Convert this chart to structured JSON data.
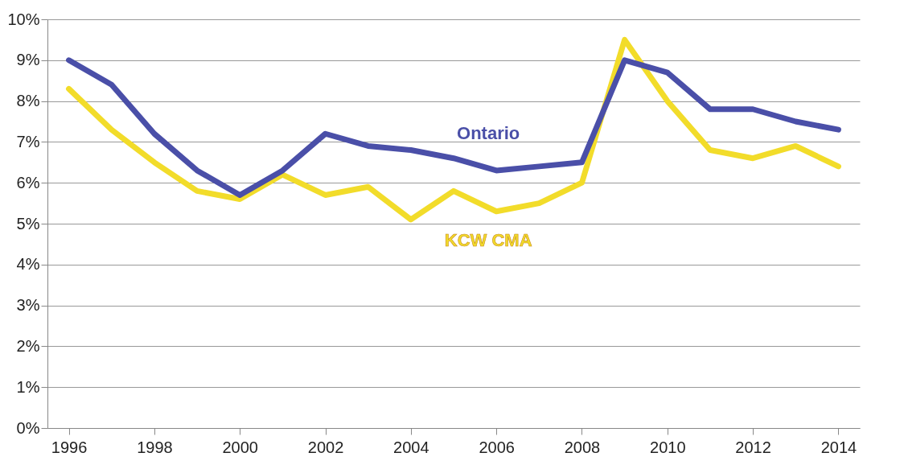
{
  "chart_data": {
    "type": "line",
    "x": [
      1996,
      1997,
      1998,
      1999,
      2000,
      2001,
      2002,
      2003,
      2004,
      2005,
      2006,
      2007,
      2008,
      2009,
      2010,
      2011,
      2012,
      2013,
      2014
    ],
    "xlim": [
      1995.5,
      2014.5
    ],
    "xticks": [
      1996,
      1998,
      2000,
      2002,
      2004,
      2006,
      2008,
      2010,
      2012,
      2014
    ],
    "ylim": [
      0,
      10
    ],
    "yticks": [
      {
        "value": 0,
        "label": "0%"
      },
      {
        "value": 1,
        "label": "1%"
      },
      {
        "value": 2,
        "label": "2%"
      },
      {
        "value": 3,
        "label": "3%"
      },
      {
        "value": 4,
        "label": "4%"
      },
      {
        "value": 5,
        "label": "5%"
      },
      {
        "value": 6,
        "label": "6%"
      },
      {
        "value": 7,
        "label": "7%"
      },
      {
        "value": 8,
        "label": "8%"
      },
      {
        "value": 9,
        "label": "9%"
      },
      {
        "value": 10,
        "label": "10%"
      }
    ],
    "grid": "y",
    "legend": false,
    "series": [
      {
        "name": "KCW CMA",
        "color": "#f2dc2a",
        "values": [
          8.3,
          7.3,
          6.5,
          5.8,
          5.6,
          6.2,
          5.7,
          5.9,
          5.1,
          5.8,
          5.3,
          5.5,
          6.0,
          9.5,
          8.0,
          6.8,
          6.6,
          6.9,
          6.4
        ]
      },
      {
        "name": "Ontario",
        "color": "#4a4fa8",
        "values": [
          9.0,
          8.4,
          7.2,
          6.3,
          5.7,
          6.3,
          7.2,
          6.9,
          6.8,
          6.6,
          6.3,
          6.4,
          6.5,
          9.0,
          8.7,
          7.8,
          7.8,
          7.5,
          7.3
        ]
      }
    ]
  }
}
